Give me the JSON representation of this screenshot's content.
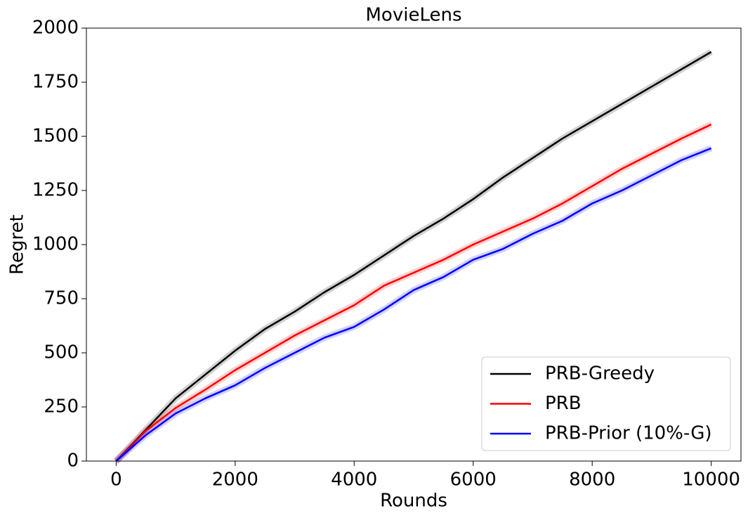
{
  "chart_data": {
    "type": "line",
    "title": "MovieLens",
    "x_label": "Rounds",
    "y_label": "Regret",
    "x": [
      0,
      500,
      1000,
      1500,
      2000,
      2500,
      3000,
      3500,
      4000,
      4500,
      5000,
      5500,
      6000,
      6500,
      7000,
      7500,
      8000,
      8500,
      9000,
      9500,
      10000
    ],
    "series": [
      {
        "name": "PRB-Greedy",
        "color": "#000000",
        "values": [
          0,
          145,
          290,
          400,
          510,
          610,
          690,
          780,
          860,
          950,
          1040,
          1120,
          1210,
          1310,
          1400,
          1490,
          1570,
          1650,
          1730,
          1810,
          1890
        ]
      },
      {
        "name": "PRB",
        "color": "#ff0000",
        "values": [
          0,
          140,
          245,
          330,
          420,
          500,
          580,
          650,
          720,
          810,
          870,
          930,
          1000,
          1060,
          1120,
          1190,
          1270,
          1350,
          1420,
          1490,
          1555
        ]
      },
      {
        "name": "PRB-Prior (10%-G)",
        "color": "#0000ff",
        "values": [
          0,
          120,
          220,
          290,
          350,
          430,
          500,
          570,
          620,
          700,
          790,
          850,
          930,
          980,
          1050,
          1110,
          1190,
          1250,
          1320,
          1390,
          1445
        ]
      }
    ],
    "xlim": [
      -500,
      10500
    ],
    "ylim": [
      0,
      2000
    ],
    "xticks": [
      0,
      2000,
      4000,
      6000,
      8000,
      10000
    ],
    "yticks": [
      0,
      250,
      500,
      750,
      1000,
      1250,
      1500,
      1750,
      2000
    ],
    "legend": "lower right"
  }
}
